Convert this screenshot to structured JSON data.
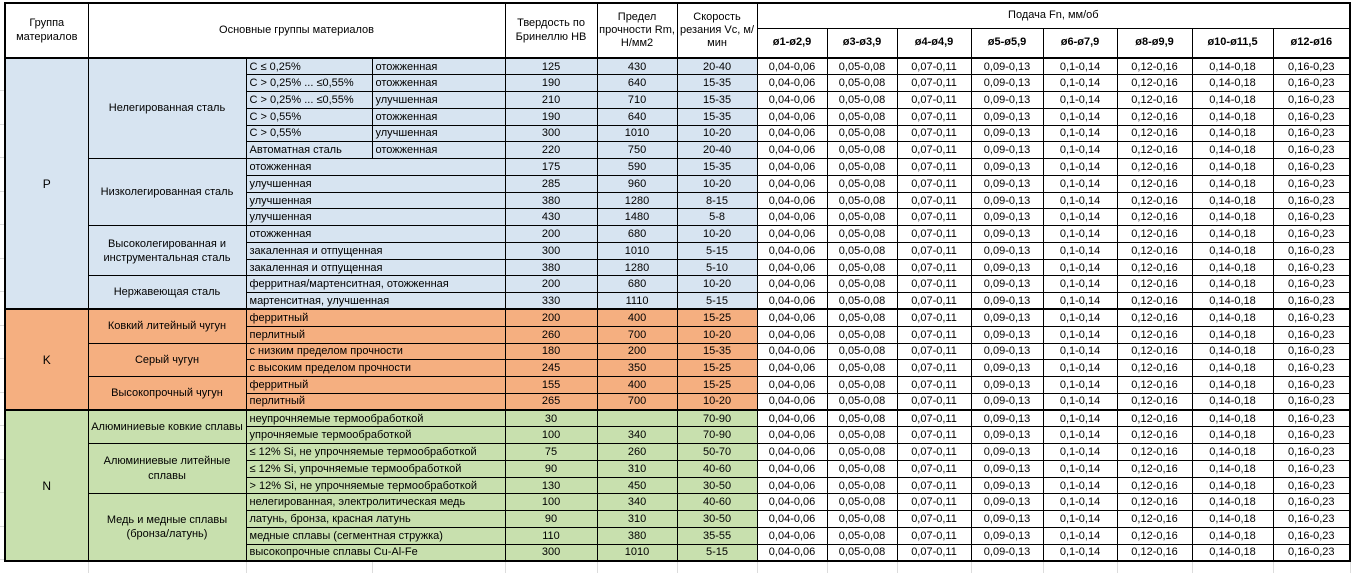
{
  "header": {
    "col_group": "Группа материалов",
    "col_main": "Основные группы материалов",
    "col_hb": "Твердость по Бринеллю HB",
    "col_rm": "Предел прочности Rm, Н/мм2",
    "col_vc": "Скорость резания Vc, м/мин",
    "feed_title": "Подача Fn, мм/об",
    "feed_cols": [
      "ø1-ø2,9",
      "ø3-ø3,9",
      "ø4-ø4,9",
      "ø5-ø5,9",
      "ø6-ø7,9",
      "ø8-ø9,9",
      "ø10-ø11,5",
      "ø12-ø16"
    ]
  },
  "feed_values": [
    "0,04-0,06",
    "0,05-0,08",
    "0,07-0,11",
    "0,09-0,13",
    "0,1-0,14",
    "0,12-0,16",
    "0,14-0,18",
    "0,16-0,23"
  ],
  "colors": {
    "p_bg": "#d7e4f1",
    "k_bg": "#f5af80",
    "n_bg": "#c8e0ae",
    "feed_bg": "#ffffff",
    "border": "#000000",
    "marker": "#1e7145"
  },
  "groups": [
    {
      "letter": "P",
      "bg": "#d7e4f1",
      "sections": [
        {
          "name": "Нелегированная сталь",
          "rows": [
            {
              "c": "C ≤ 0,25%",
              "t": "отожженная",
              "hb": "125",
              "rm": "430",
              "vc": "20-40",
              "tri": false
            },
            {
              "c": "C > 0,25% ... ≤0,55%",
              "t": "отожженная",
              "hb": "190",
              "rm": "640",
              "vc": "15-35",
              "tri": false
            },
            {
              "c": "C > 0,25% ... ≤0,55%",
              "t": "улучшенная",
              "hb": "210",
              "rm": "710",
              "vc": "15-35",
              "tri": false
            },
            {
              "c": "C > 0,55%",
              "t": "отожженная",
              "hb": "190",
              "rm": "640",
              "vc": "15-35",
              "tri": false
            },
            {
              "c": "C > 0,55%",
              "t": "улучшенная",
              "hb": "300",
              "rm": "1010",
              "vc": "10-20",
              "tri": true
            },
            {
              "c": "Автоматная сталь",
              "t": "отожженная",
              "hb": "220",
              "rm": "750",
              "vc": "20-40",
              "tri": false
            }
          ]
        },
        {
          "name": "Низколегированная сталь",
          "rows": [
            {
              "c": "отожженная",
              "hb": "175",
              "rm": "590",
              "vc": "15-35",
              "tri": false
            },
            {
              "c": "улучшенная",
              "hb": "285",
              "rm": "960",
              "vc": "10-20",
              "tri": true
            },
            {
              "c": "улучшенная",
              "hb": "380",
              "rm": "1280",
              "vc": "8-15",
              "tri": true
            },
            {
              "c": "улучшенная",
              "hb": "430",
              "rm": "1480",
              "vc": "5-8",
              "tri": false
            }
          ]
        },
        {
          "name": "Высоколегированная и инструментальная сталь",
          "rows": [
            {
              "c": "отожженная",
              "hb": "200",
              "rm": "680",
              "vc": "10-20",
              "tri": true
            },
            {
              "c": "закаленная и отпущенная",
              "hb": "300",
              "rm": "1010",
              "vc": "5-15",
              "tri": true
            },
            {
              "c": "закаленная и отпущенная",
              "hb": "380",
              "rm": "1280",
              "vc": "5-10",
              "tri": false
            }
          ]
        },
        {
          "name": "Нержавеющая сталь",
          "rows": [
            {
              "c": "ферритная/мартенситная, отожженная",
              "hb": "200",
              "rm": "680",
              "vc": "10-20",
              "tri": true
            },
            {
              "c": "мартенситная, улучшенная",
              "hb": "330",
              "rm": "1110",
              "vc": "5-15",
              "tri": true
            }
          ]
        }
      ]
    },
    {
      "letter": "K",
      "bg": "#f5af80",
      "sections": [
        {
          "name": "Ковкий литейный чугун",
          "rows": [
            {
              "c": "ферритный",
              "hb": "200",
              "rm": "400",
              "vc": "15-25",
              "tri": false
            },
            {
              "c": "перлитный",
              "hb": "260",
              "rm": "700",
              "vc": "10-20",
              "tri": true
            }
          ]
        },
        {
          "name": "Серый чугун",
          "rows": [
            {
              "c": "с низким пределом прочности",
              "hb": "180",
              "rm": "200",
              "vc": "15-35",
              "tri": false
            },
            {
              "c": "с высоким пределом прочности",
              "hb": "245",
              "rm": "350",
              "vc": "15-25",
              "tri": false
            }
          ]
        },
        {
          "name": "Высокопрочный чугун",
          "rows": [
            {
              "c": "ферритный",
              "hb": "155",
              "rm": "400",
              "vc": "15-25",
              "tri": false
            },
            {
              "c": "перлитный",
              "hb": "265",
              "rm": "700",
              "vc": "10-20",
              "tri": true
            }
          ]
        }
      ]
    },
    {
      "letter": "N",
      "bg": "#c8e0ae",
      "sections": [
        {
          "name": "Алюминиевые ковкие сплавы",
          "rows": [
            {
              "c": "неупрочняемые термообработкой",
              "hb": "30",
              "rm": "",
              "vc": "70-90",
              "tri": false
            },
            {
              "c": "упрочняемые термообработкой",
              "hb": "100",
              "rm": "340",
              "vc": "70-90",
              "tri": false
            }
          ]
        },
        {
          "name": "Алюминиевые литейные сплавы",
          "rows": [
            {
              "c": "≤ 12% Si, не упрочняемые термообработкой",
              "hb": "75",
              "rm": "260",
              "vc": "50-70",
              "tri": false
            },
            {
              "c": "≤ 12% Si, упрочняемые термообработкой",
              "hb": "90",
              "rm": "310",
              "vc": "40-60",
              "tri": false
            },
            {
              "c": "> 12% Si, не упрочняемые термообработкой",
              "hb": "130",
              "rm": "450",
              "vc": "30-50",
              "tri": false
            }
          ]
        },
        {
          "name": "Медь и медные сплавы (бронза/латунь)",
          "rows": [
            {
              "c": "нелегированная, электролитическая медь",
              "hb": "100",
              "rm": "340",
              "vc": "40-60",
              "tri": false
            },
            {
              "c": "латунь, бронза, красная латунь",
              "hb": "90",
              "rm": "310",
              "vc": "30-50",
              "tri": false
            },
            {
              "c": "медные сплавы (сегментная стружка)",
              "hb": "110",
              "rm": "380",
              "vc": "35-55",
              "tri": false
            },
            {
              "c": "высокопрочные сплавы Cu-Al-Fe",
              "hb": "300",
              "rm": "1010",
              "vc": "5-15",
              "tri": true
            }
          ]
        }
      ]
    }
  ]
}
